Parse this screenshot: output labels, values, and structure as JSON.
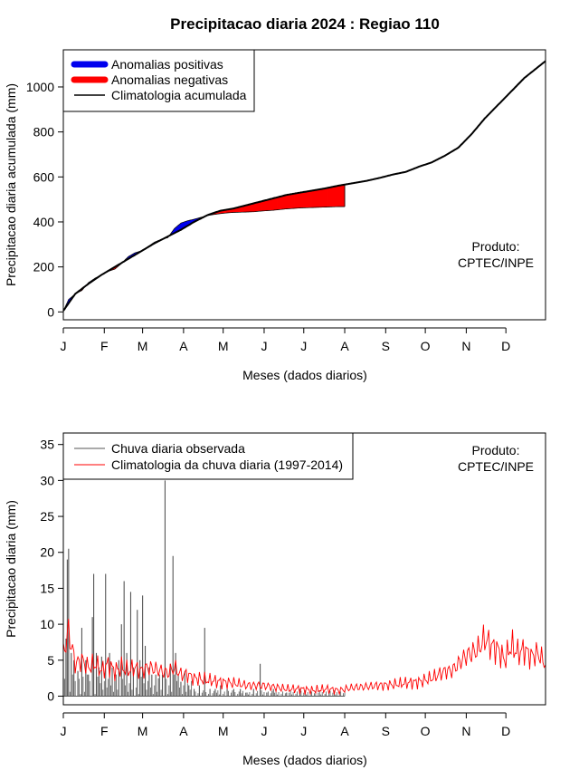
{
  "page_title": "Precipitacao diaria 2024 : Regiao 110",
  "chart_data": [
    {
      "type": "area",
      "name": "accumulated",
      "xlabel": "Meses (dados diarios)",
      "ylabel": "Precipitacao diaria acumulada (mm)",
      "xlim": [
        1,
        366
      ],
      "ylim": [
        -35,
        1165
      ],
      "x_ticks": [
        {
          "label": "J",
          "day": 1
        },
        {
          "label": "F",
          "day": 32
        },
        {
          "label": "M",
          "day": 61
        },
        {
          "label": "A",
          "day": 92
        },
        {
          "label": "M",
          "day": 122
        },
        {
          "label": "J",
          "day": 153
        },
        {
          "label": "J",
          "day": 183
        },
        {
          "label": "A",
          "day": 214
        },
        {
          "label": "S",
          "day": 245
        },
        {
          "label": "O",
          "day": 275
        },
        {
          "label": "N",
          "day": 306
        },
        {
          "label": "D",
          "day": 336
        }
      ],
      "y_ticks": [
        0,
        200,
        400,
        600,
        800,
        1000
      ],
      "legend": {
        "placement": "top-left",
        "items": [
          {
            "label": "Anomalias positivas",
            "color": "#0000ee"
          },
          {
            "label": "Anomalias negativas",
            "color": "#ff0000"
          },
          {
            "label": "Climatologia acumulada",
            "color": "#000000"
          }
        ]
      },
      "annotation": {
        "line1": "Produto:",
        "line2": "CPTEC/INPE"
      },
      "climatology_cumulative": {
        "day": [
          1,
          10,
          20,
          30,
          40,
          50,
          60,
          70,
          80,
          90,
          100,
          110,
          120,
          130,
          140,
          150,
          160,
          170,
          180,
          190,
          200,
          210,
          220,
          230,
          240,
          250,
          260,
          270,
          280,
          290,
          300,
          310,
          320,
          330,
          340,
          350,
          366
        ],
        "value": [
          5,
          80,
          125,
          165,
          200,
          235,
          270,
          305,
          335,
          365,
          400,
          430,
          450,
          460,
          475,
          490,
          505,
          520,
          530,
          540,
          550,
          562,
          572,
          582,
          595,
          610,
          622,
          645,
          665,
          695,
          730,
          790,
          860,
          920,
          980,
          1040,
          1115
        ]
      },
      "observed_cumulative": {
        "day": [
          1,
          5,
          10,
          15,
          20,
          25,
          30,
          35,
          40,
          45,
          50,
          55,
          60,
          65,
          70,
          75,
          80,
          85,
          90,
          95,
          100,
          105,
          110,
          115,
          120,
          125,
          130,
          135,
          140,
          145,
          150,
          155,
          160,
          165,
          170,
          175,
          180,
          185,
          190,
          195,
          200,
          205,
          210,
          214
        ],
        "value": [
          5,
          55,
          80,
          95,
          130,
          150,
          165,
          180,
          190,
          215,
          245,
          262,
          272,
          290,
          310,
          322,
          330,
          370,
          395,
          405,
          412,
          420,
          428,
          433,
          437,
          440,
          442,
          443,
          444,
          445,
          448,
          450,
          452,
          455,
          458,
          460,
          462,
          463,
          464,
          465,
          466,
          467,
          468,
          468
        ]
      }
    },
    {
      "type": "bar",
      "name": "daily",
      "xlabel": "Meses (dados diarios)",
      "ylabel": "Precipitacao diaria (mm)",
      "xlim": [
        1,
        366
      ],
      "ylim": [
        -1.2,
        36.6
      ],
      "y_ticks": [
        0,
        5,
        10,
        15,
        20,
        25,
        30,
        35
      ],
      "legend": {
        "placement": "top-left",
        "items": [
          {
            "label": "Chuva diaria observada",
            "color": "#555555"
          },
          {
            "label": "Climatologia da chuva diaria (1997-2014)",
            "color": "#ff0000"
          }
        ]
      },
      "annotation": {
        "line1": "Produto:",
        "line2": "CPTEC/INPE"
      },
      "observed_daily_peaks": {
        "day": [
          1,
          3,
          4,
          5,
          7,
          9,
          12,
          15,
          18,
          20,
          23,
          24,
          26,
          28,
          30,
          33,
          36,
          38,
          40,
          43,
          45,
          47,
          49,
          52,
          54,
          57,
          59,
          61,
          63,
          66,
          68,
          71,
          73,
          76,
          78,
          82,
          84,
          86,
          88,
          90,
          93,
          96,
          100,
          104,
          108,
          112,
          116,
          120,
          125,
          130,
          135,
          140,
          145,
          150,
          155,
          160,
          170,
          180
        ],
        "value": [
          2.5,
          8,
          19,
          20.5,
          6,
          5,
          3.5,
          9.5,
          5,
          3,
          11,
          17,
          6,
          4,
          5.5,
          17,
          6,
          4,
          3,
          5,
          10,
          16,
          6,
          14.5,
          4,
          12,
          5,
          14,
          7,
          4,
          3,
          3,
          2.5,
          3,
          30,
          4.5,
          19.5,
          6,
          3,
          2,
          3.5,
          1.5,
          1,
          1.5,
          9.5,
          1,
          1,
          1.5,
          1,
          1,
          1,
          0.5,
          1,
          4.5,
          0.5,
          1,
          0.5,
          1
        ]
      },
      "climatology_daily": {
        "day": [
          1,
          5,
          10,
          15,
          20,
          25,
          30,
          35,
          40,
          45,
          50,
          55,
          60,
          65,
          70,
          75,
          80,
          85,
          90,
          95,
          100,
          110,
          120,
          130,
          140,
          150,
          160,
          170,
          180,
          190,
          200,
          210,
          220,
          230,
          240,
          250,
          260,
          270,
          280,
          290,
          295,
          300,
          305,
          310,
          315,
          320,
          325,
          330,
          335,
          340,
          345,
          350,
          355,
          360,
          366
        ],
        "value": [
          6,
          9,
          4.5,
          5,
          4,
          4.5,
          3.5,
          4.5,
          3.5,
          4,
          3.5,
          4,
          3.5,
          4,
          3.8,
          3.5,
          3.2,
          4,
          3,
          3,
          2.5,
          2.2,
          2,
          1.8,
          1.5,
          1.5,
          1.3,
          1,
          1,
          0.8,
          1,
          0.8,
          1.2,
          1.3,
          1.5,
          1.6,
          1.8,
          2,
          2.5,
          3.5,
          3.5,
          4.5,
          5.5,
          6,
          6.5,
          8,
          7,
          6.5,
          5,
          7,
          6,
          6.5,
          5.5,
          6,
          4.5
        ]
      }
    }
  ]
}
